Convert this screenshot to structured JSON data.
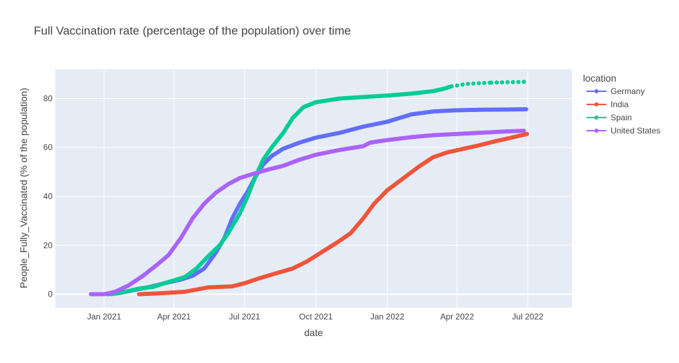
{
  "chart_data": {
    "type": "scatter",
    "title": "Full Vaccination rate (percentage of the population) over time",
    "xlabel": "date",
    "ylabel": "People_Fully_Vaccinated (% of the population)",
    "x_range": [
      "2020-10-30",
      "2022-08-27"
    ],
    "ylim": [
      -5.5,
      92
    ],
    "grid": true,
    "x_ticks": [
      {
        "date": "2021-01-01",
        "label": "Jan 2021"
      },
      {
        "date": "2021-04-01",
        "label": "Apr 2021"
      },
      {
        "date": "2021-07-01",
        "label": "Jul 2021"
      },
      {
        "date": "2021-10-01",
        "label": "Oct 2021"
      },
      {
        "date": "2022-01-01",
        "label": "Jan 2022"
      },
      {
        "date": "2022-04-01",
        "label": "Apr 2022"
      },
      {
        "date": "2022-07-01",
        "label": "Jul 2022"
      }
    ],
    "y_ticks": [
      0,
      20,
      40,
      60,
      80
    ],
    "legend_title": "location",
    "legend_position": "right",
    "series": [
      {
        "name": "Germany",
        "color": "#636efa",
        "points": [
          [
            "2021-01-05",
            0
          ],
          [
            "2021-01-20",
            0.5
          ],
          [
            "2021-02-10",
            1.8
          ],
          [
            "2021-03-01",
            3.0
          ],
          [
            "2021-03-20",
            4.5
          ],
          [
            "2021-04-10",
            6.0
          ],
          [
            "2021-04-25",
            7.5
          ],
          [
            "2021-05-10",
            10.5
          ],
          [
            "2021-05-25",
            17.0
          ],
          [
            "2021-06-05",
            23.0
          ],
          [
            "2021-06-15",
            31.0
          ],
          [
            "2021-06-25",
            37.0
          ],
          [
            "2021-07-05",
            42.0
          ],
          [
            "2021-07-15",
            48.0
          ],
          [
            "2021-07-25",
            53.0
          ],
          [
            "2021-08-05",
            56.5
          ],
          [
            "2021-08-20",
            59.5
          ],
          [
            "2021-09-10",
            62.0
          ],
          [
            "2021-10-01",
            64.0
          ],
          [
            "2021-11-01",
            66.0
          ],
          [
            "2021-12-01",
            68.5
          ],
          [
            "2022-01-01",
            70.5
          ],
          [
            "2022-02-01",
            73.5
          ],
          [
            "2022-03-01",
            74.7
          ],
          [
            "2022-04-01",
            75.2
          ],
          [
            "2022-05-01",
            75.4
          ],
          [
            "2022-06-01",
            75.5
          ],
          [
            "2022-06-29",
            75.6
          ]
        ]
      },
      {
        "name": "India",
        "color": "#ef553b",
        "points": [
          [
            "2021-02-15",
            0
          ],
          [
            "2021-03-15",
            0.4
          ],
          [
            "2021-04-15",
            1.0
          ],
          [
            "2021-05-15",
            2.8
          ],
          [
            "2021-06-15",
            3.2
          ],
          [
            "2021-07-01",
            4.5
          ],
          [
            "2021-07-20",
            6.5
          ],
          [
            "2021-08-10",
            8.5
          ],
          [
            "2021-09-01",
            10.5
          ],
          [
            "2021-09-20",
            13.5
          ],
          [
            "2021-10-10",
            17.5
          ],
          [
            "2021-10-30",
            21.5
          ],
          [
            "2021-11-15",
            25.0
          ],
          [
            "2021-12-01",
            31.0
          ],
          [
            "2021-12-15",
            37.0
          ],
          [
            "2022-01-01",
            42.5
          ],
          [
            "2022-01-20",
            47.0
          ],
          [
            "2022-02-10",
            52.0
          ],
          [
            "2022-03-01",
            56.0
          ],
          [
            "2022-03-20",
            58.0
          ],
          [
            "2022-04-10",
            59.5
          ],
          [
            "2022-05-01",
            61.0
          ],
          [
            "2022-05-20",
            62.5
          ],
          [
            "2022-06-10",
            64.0
          ],
          [
            "2022-06-30",
            65.5
          ]
        ]
      },
      {
        "name": "Spain",
        "color": "#00cc96",
        "points": [
          [
            "2021-01-10",
            0
          ],
          [
            "2021-01-25",
            0.8
          ],
          [
            "2021-02-15",
            2.3
          ],
          [
            "2021-03-05",
            3.0
          ],
          [
            "2021-03-25",
            5.0
          ],
          [
            "2021-04-15",
            7.0
          ],
          [
            "2021-04-30",
            10.5
          ],
          [
            "2021-05-15",
            15.5
          ],
          [
            "2021-05-30",
            20.0
          ],
          [
            "2021-06-10",
            25.0
          ],
          [
            "2021-06-25",
            33.0
          ],
          [
            "2021-07-05",
            40.0
          ],
          [
            "2021-07-15",
            48.0
          ],
          [
            "2021-07-25",
            55.0
          ],
          [
            "2021-08-05",
            60.0
          ],
          [
            "2021-08-20",
            66.0
          ],
          [
            "2021-09-01",
            72.0
          ],
          [
            "2021-09-15",
            76.5
          ],
          [
            "2021-10-01",
            78.5
          ],
          [
            "2021-11-01",
            80.0
          ],
          [
            "2021-12-01",
            80.6
          ],
          [
            "2022-01-01",
            81.2
          ],
          [
            "2022-02-01",
            82.0
          ],
          [
            "2022-03-01",
            83.0
          ],
          [
            "2022-03-15",
            84.0
          ],
          [
            "2022-03-25",
            85.0
          ],
          [
            "2022-04-15",
            86.0
          ],
          [
            "2022-05-15",
            86.5
          ],
          [
            "2022-06-26",
            86.8
          ]
        ]
      },
      {
        "name": "United States",
        "color": "#ab63fa",
        "points": [
          [
            "2020-12-15",
            0
          ],
          [
            "2021-01-01",
            0
          ],
          [
            "2021-01-15",
            1.0
          ],
          [
            "2021-02-01",
            3.5
          ],
          [
            "2021-02-20",
            7.5
          ],
          [
            "2021-03-10",
            12.0
          ],
          [
            "2021-03-25",
            16.0
          ],
          [
            "2021-04-10",
            23.0
          ],
          [
            "2021-04-25",
            31.0
          ],
          [
            "2021-05-10",
            37.0
          ],
          [
            "2021-05-25",
            41.5
          ],
          [
            "2021-06-10",
            45.0
          ],
          [
            "2021-06-25",
            47.5
          ],
          [
            "2021-07-15",
            49.5
          ],
          [
            "2021-08-01",
            51.0
          ],
          [
            "2021-08-20",
            52.5
          ],
          [
            "2021-09-10",
            55.0
          ],
          [
            "2021-10-01",
            57.0
          ],
          [
            "2021-11-01",
            59.0
          ],
          [
            "2021-12-01",
            60.5
          ],
          [
            "2021-12-10",
            62.0
          ],
          [
            "2022-01-01",
            63.0
          ],
          [
            "2022-02-01",
            64.2
          ],
          [
            "2022-03-01",
            65.0
          ],
          [
            "2022-04-01",
            65.5
          ],
          [
            "2022-05-01",
            66.0
          ],
          [
            "2022-06-01",
            66.5
          ],
          [
            "2022-06-26",
            66.8
          ]
        ]
      }
    ]
  }
}
